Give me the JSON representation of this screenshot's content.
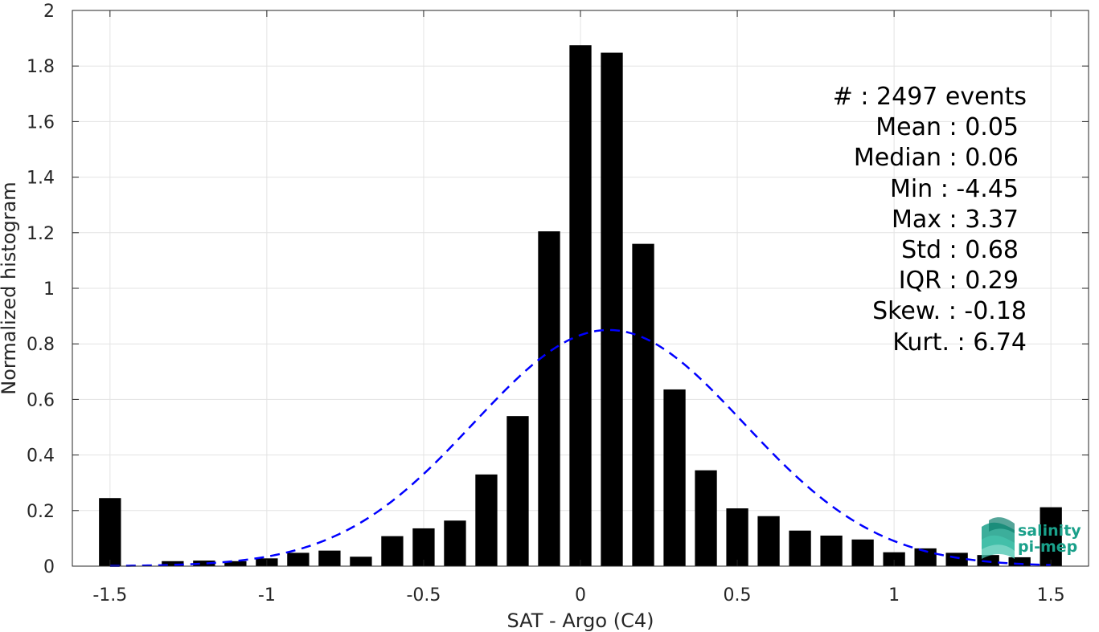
{
  "chart_data": {
    "type": "bar",
    "xlabel": "SAT - Argo (C4)",
    "ylabel": "Normalized histogram",
    "xlim": [
      -1.62,
      1.62
    ],
    "ylim": [
      0,
      2
    ],
    "xticks": [
      -1.5,
      -1,
      -0.5,
      0,
      0.5,
      1,
      1.5
    ],
    "xtick_labels": [
      "-1.5",
      "-1",
      "-0.5",
      "0",
      "0.5",
      "1",
      "1.5"
    ],
    "yticks": [
      0,
      0.2,
      0.4,
      0.6,
      0.8,
      1,
      1.2,
      1.4,
      1.6,
      1.8,
      2
    ],
    "ytick_labels": [
      "0",
      "0.2",
      "0.4",
      "0.6",
      "0.8",
      "1",
      "1.2",
      "1.4",
      "1.6",
      "1.8",
      "2"
    ],
    "grid": true,
    "bar_width": 0.07,
    "bar_color": "#000000",
    "bars": {
      "x": [
        -1.5,
        -1.4,
        -1.3,
        -1.2,
        -1.1,
        -1.0,
        -0.9,
        -0.8,
        -0.7,
        -0.6,
        -0.5,
        -0.4,
        -0.3,
        -0.2,
        -0.1,
        0.0,
        0.1,
        0.2,
        0.3,
        0.4,
        0.5,
        0.6,
        0.7,
        0.8,
        0.9,
        1.0,
        1.1,
        1.2,
        1.3,
        1.4,
        1.5
      ],
      "values": [
        0.245,
        0.0,
        0.018,
        0.02,
        0.018,
        0.028,
        0.048,
        0.056,
        0.034,
        0.108,
        0.136,
        0.164,
        0.33,
        0.54,
        1.205,
        1.875,
        1.848,
        1.16,
        0.636,
        0.345,
        0.208,
        0.18,
        0.128,
        0.11,
        0.096,
        0.05,
        0.064,
        0.048,
        0.04,
        0.032,
        0.212
      ]
    },
    "fit": {
      "type": "gaussian",
      "mean": 0.09,
      "peak": 0.85,
      "std": 0.43,
      "style": "dashed",
      "color": "#0000ff"
    },
    "annotations": [
      "#  : 2497 events",
      "Mean : 0.05",
      "Median : 0.06",
      "Min : -4.45",
      "Max : 3.37",
      "Std : 0.68",
      "IQR : 0.29",
      "Skew. : -0.18",
      "Kurt. : 6.74"
    ]
  },
  "logo": {
    "line1": "salinity",
    "line2": "pi-mep",
    "color": "#1aa08a"
  }
}
